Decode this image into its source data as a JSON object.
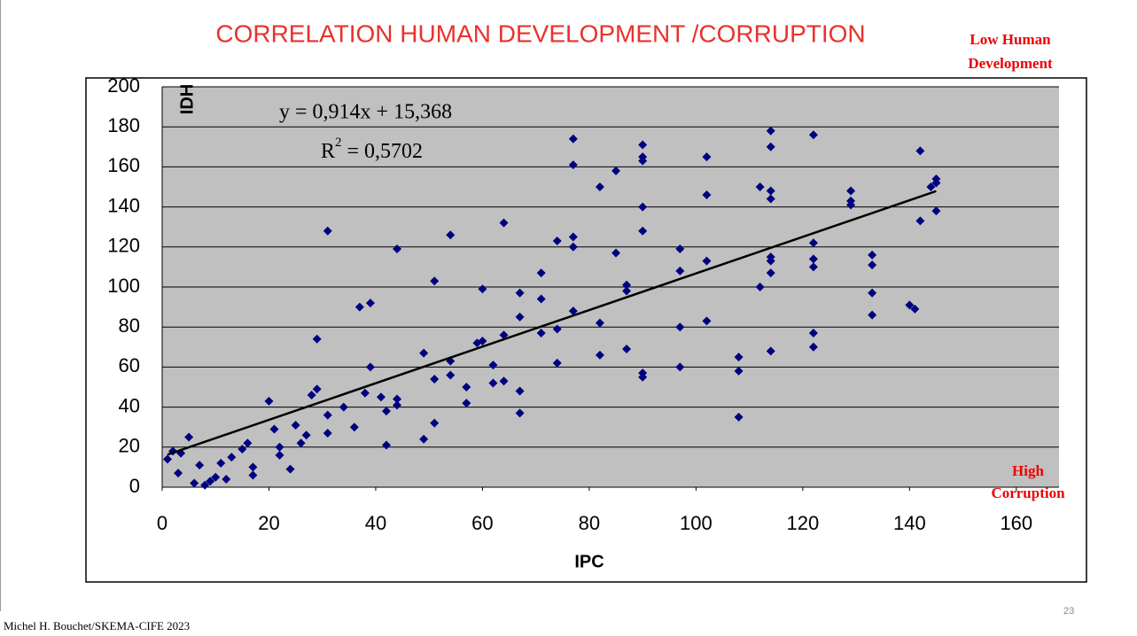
{
  "chart_data": {
    "type": "scatter",
    "title": "CORRELATION HUMAN DEVELOPMENT /CORRUPTION",
    "x_label": "IPC",
    "y_label": "IDH",
    "corner_top": [
      "Low Human",
      "Development"
    ],
    "corner_bottom": [
      "High",
      "Corruption"
    ],
    "equation": "y = 0,914x + 15,368",
    "r2_label": {
      "base": "R",
      "sup": "2",
      "rest": " = 0,5702"
    },
    "trendline": {
      "slope": 0.914,
      "intercept": 15.368,
      "x_range": [
        1,
        145
      ],
      "color": "#000000"
    },
    "xlim": [
      0,
      168
    ],
    "ylim": [
      0,
      200
    ],
    "xticks": [
      0,
      20,
      40,
      60,
      80,
      100,
      120,
      140,
      160
    ],
    "yticks": [
      0,
      20,
      40,
      60,
      80,
      100,
      120,
      140,
      160,
      180,
      200
    ],
    "grid": true,
    "series": [
      {
        "color": "#000080",
        "x": [
          1,
          2,
          3,
          3.5,
          5,
          6,
          7,
          8,
          9,
          10,
          11,
          12,
          13,
          15,
          16,
          17,
          17,
          20,
          21,
          22,
          22,
          24,
          25,
          26,
          27,
          28,
          29,
          29,
          31,
          31,
          31,
          34,
          36,
          37,
          38,
          39,
          39,
          41,
          42,
          42,
          44,
          44,
          44,
          49,
          49,
          51,
          51,
          51,
          54,
          54,
          54,
          57,
          57,
          59,
          60,
          60,
          62,
          62,
          64,
          64,
          64,
          67,
          67,
          67,
          67,
          71,
          71,
          71,
          74,
          74,
          74,
          77,
          77,
          77,
          77,
          77,
          82,
          82,
          82,
          85,
          85,
          87,
          87,
          87,
          90,
          90,
          90,
          90,
          90,
          90,
          90,
          97,
          97,
          97,
          97,
          102,
          102,
          102,
          102,
          108,
          108,
          108,
          112,
          112,
          114,
          114,
          114,
          114,
          114,
          114,
          114,
          114,
          122,
          122,
          122,
          122,
          122,
          122,
          129,
          129,
          129,
          133,
          133,
          133,
          133,
          140,
          141,
          142,
          142,
          144,
          145,
          145,
          145
        ],
        "values": [
          14,
          18,
          7,
          17,
          25,
          2,
          11,
          1,
          3,
          5,
          12,
          4,
          15,
          19,
          22,
          10,
          6,
          43,
          29,
          20,
          16,
          9,
          31,
          22,
          26,
          46,
          49,
          74,
          128,
          36,
          27,
          40,
          30,
          90,
          47,
          92,
          60,
          45,
          21,
          38,
          44,
          41,
          119,
          24,
          67,
          103,
          54,
          32,
          126,
          63,
          56,
          50,
          42,
          72,
          73,
          99,
          61,
          52,
          76,
          132,
          53,
          97,
          85,
          48,
          37,
          107,
          94,
          77,
          123,
          79,
          62,
          174,
          161,
          125,
          120,
          88,
          150,
          82,
          66,
          158,
          117,
          101,
          98,
          69,
          171,
          165,
          163,
          140,
          128,
          57,
          55,
          119,
          108,
          80,
          60,
          165,
          146,
          113,
          83,
          35,
          65,
          58,
          150,
          100,
          178,
          170,
          148,
          144,
          115,
          113,
          107,
          68,
          176,
          122,
          114,
          110,
          77,
          70,
          148,
          143,
          141,
          116,
          111,
          97,
          86,
          91,
          89,
          168,
          133,
          150,
          152,
          154,
          138
        ]
      }
    ],
    "footer": "Michel H. Bouchet/SKEMA-CIFE 2023",
    "page_number": "23"
  }
}
